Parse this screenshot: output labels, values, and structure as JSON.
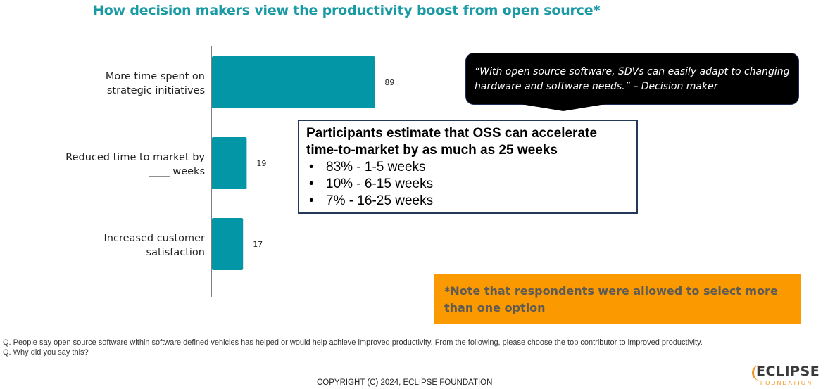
{
  "title": "How decision makers view the productivity boost from open source*",
  "chart_data": {
    "type": "bar",
    "orientation": "horizontal",
    "title": "How decision makers view the productivity boost from open source*",
    "categories": [
      [
        "More time spent on",
        "strategic initiatives"
      ],
      [
        "Reduced time to market by",
        "____ weeks"
      ],
      [
        "Increased customer",
        "satisfaction"
      ]
    ],
    "values": [
      89,
      19,
      17
    ],
    "data_labels": [
      "89",
      "19",
      "17"
    ],
    "xlabel": "",
    "ylabel": "",
    "xlim": [
      0,
      100
    ],
    "grid": false,
    "bar_color": "#0396a6",
    "axis_color": "#7f7f7f"
  },
  "quote": {
    "text": "“With open source software, SDVs can easily adapt to changing hardware and software needs.” – Decision maker"
  },
  "callout": {
    "heading": "Participants estimate that OSS can accelerate time-to-market by as much as 25 weeks",
    "bullet_glyph": "•",
    "items": [
      "83% - 1-5 weeks",
      "10% - 6-15 weeks",
      "7% - 16-25 weeks"
    ]
  },
  "note": {
    "text": "*Note that respondents were allowed to select more than one option",
    "background": "#fb9a00"
  },
  "questions": [
    "Q. People say open source software within software defined vehicles has helped or would help achieve improved productivity. From the following, please choose the top contributor to improved productivity.",
    "Q. Why did you say this?"
  ],
  "footer": {
    "copyright": "COPYRIGHT (C) 2024, ECLIPSE FOUNDATION",
    "logo_main": "ECLIPSE",
    "logo_sub": "FOUNDATION"
  },
  "colors": {
    "title": "#1a9aa5",
    "bar": "#0396a6",
    "logo_accent": "#f7941d"
  }
}
